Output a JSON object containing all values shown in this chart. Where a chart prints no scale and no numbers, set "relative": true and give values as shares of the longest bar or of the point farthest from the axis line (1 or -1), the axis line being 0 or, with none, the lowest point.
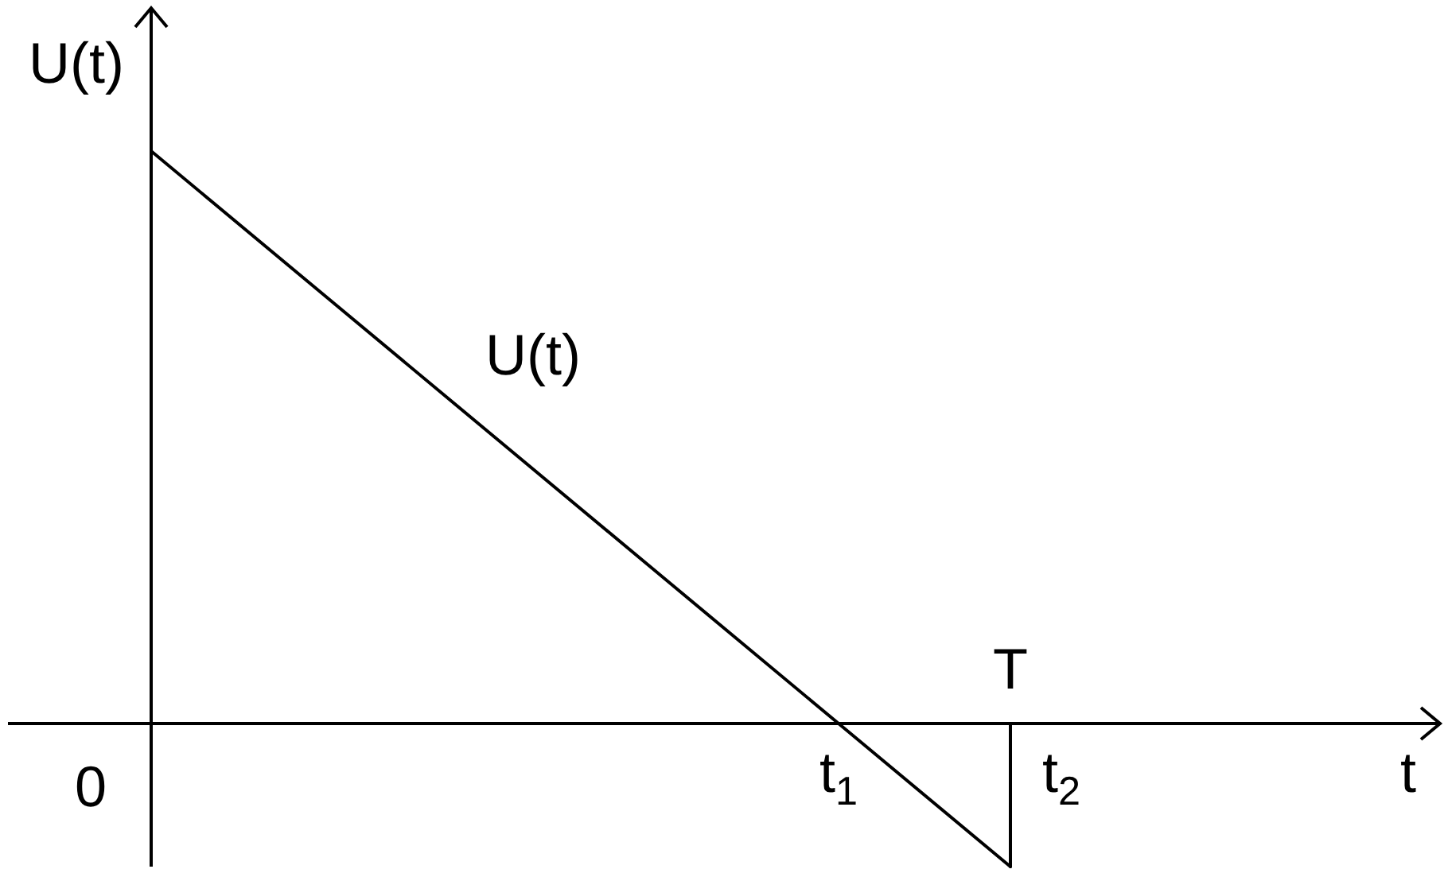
{
  "chart_data": {
    "type": "line",
    "relative": true,
    "ylabel": "U(t)",
    "categories": [
      null,
      null,
      null,
      null,
      "t$_{1}$",
      "T"
    ],
    "series": [
      {
        "name": "U(t)",
        "color": "#000000",
        "values": [
          1,
          0.75,
          0.5,
          0.25,
          0,
          -0.25
        ]
      },
      {
        "color": "#000000",
        "x": [
          "T",
          "T"
        ],
        "values": [
          -0.25,
          0
        ]
      }
    ],
    "annotations": [
      "0",
      "t$_{2}$",
      "t"
    ],
    "line_style": "solid"
  }
}
